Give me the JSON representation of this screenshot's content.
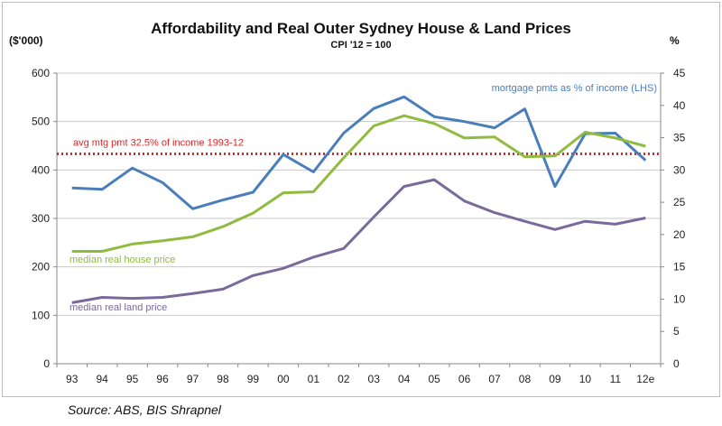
{
  "chart_data": {
    "type": "line",
    "title": "Affordability  and Real Outer Sydney House & Land Prices",
    "subtitle": "CPI '12 = 100",
    "ylabel_left": "($'000)",
    "ylabel_right": "%",
    "source": "Source: ABS, BIS Shrapnel",
    "categories": [
      "93",
      "94",
      "95",
      "96",
      "97",
      "98",
      "99",
      "00",
      "01",
      "02",
      "03",
      "04",
      "05",
      "06",
      "07",
      "08",
      "09",
      "10",
      "11",
      "12e"
    ],
    "ylim_left": [
      0,
      600
    ],
    "yticks_left": [
      "0",
      "100",
      "200",
      "300",
      "400",
      "500",
      "600"
    ],
    "ylim_right": [
      0,
      45
    ],
    "yticks_right": [
      "0",
      "5",
      "10",
      "15",
      "20",
      "25",
      "30",
      "35",
      "40",
      "45"
    ],
    "grid": "horizontal",
    "series": [
      {
        "name": "mortgage pmts as % of income (LHS)",
        "axis": "left",
        "color": "#4a7ebb",
        "values": [
          363,
          360,
          404,
          374,
          320,
          338,
          354,
          432,
          396,
          476,
          527,
          551,
          510,
          500,
          487,
          526,
          366,
          475,
          476,
          420
        ]
      },
      {
        "name": "median real house price",
        "axis": "left",
        "color": "#8fbc3f",
        "values": [
          232,
          232,
          247,
          254,
          262,
          283,
          311,
          353,
          355,
          425,
          491,
          512,
          496,
          466,
          468,
          427,
          429,
          478,
          466,
          449
        ]
      },
      {
        "name": "median real land price",
        "axis": "left",
        "color": "#7a6a9b",
        "values": [
          126,
          137,
          135,
          137,
          145,
          154,
          182,
          197,
          220,
          238,
          303,
          366,
          380,
          336,
          312,
          294,
          277,
          294,
          288,
          301
        ]
      }
    ],
    "reference_line": {
      "label": "avg mtg pmt 32.5% of income 1993-12",
      "value_right": 32.5,
      "color": "#d42a2a"
    }
  }
}
